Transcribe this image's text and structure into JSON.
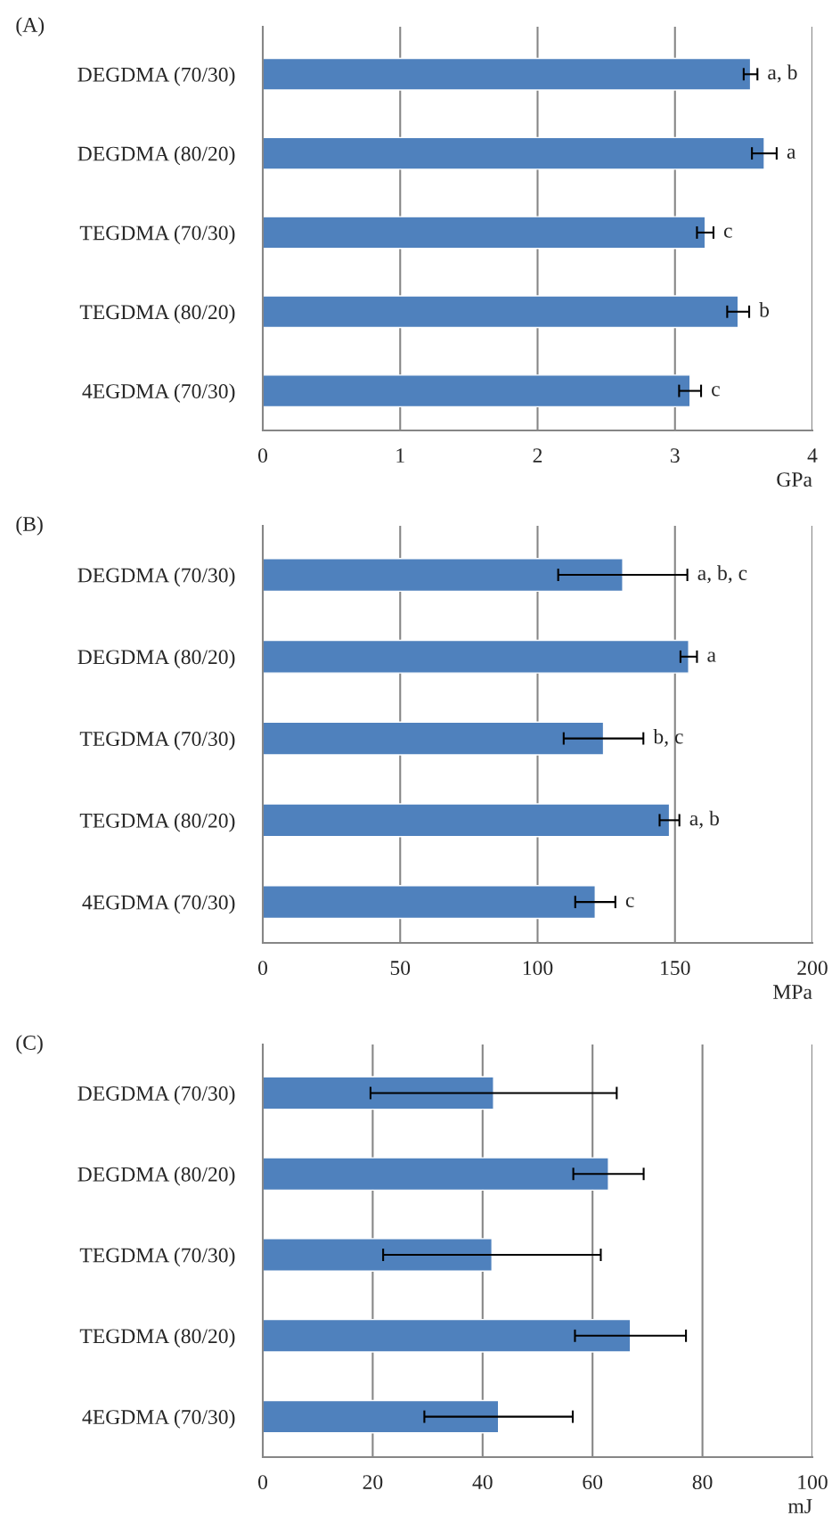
{
  "chart_data": [
    {
      "type": "bar",
      "orientation": "horizontal",
      "title": "(A)",
      "xlabel": "GPa",
      "categories": [
        "DEGDMA (70/30)",
        "DEGDMA (80/20)",
        "TEGDMA (70/30)",
        "TEGDMA (80/20)",
        "4EGDMA (70/30)"
      ],
      "values": [
        3.55,
        3.65,
        3.22,
        3.46,
        3.11
      ],
      "errors": [
        0.05,
        0.09,
        0.06,
        0.08,
        0.08
      ],
      "color": "#4f81bd",
      "xlim": [
        0,
        4
      ],
      "xticks": [
        0,
        1,
        2,
        3,
        4
      ],
      "grid": "x",
      "annotations": [
        "a, b",
        "a",
        "c",
        "b",
        "c"
      ]
    },
    {
      "type": "bar",
      "orientation": "horizontal",
      "title": "(B)",
      "xlabel": "MPa",
      "categories": [
        "DEGDMA (70/30)",
        "DEGDMA (80/20)",
        "TEGDMA (70/30)",
        "TEGDMA (80/20)",
        "4EGDMA (70/30)"
      ],
      "values": [
        131,
        155,
        124,
        148,
        121
      ],
      "errors": [
        23.5,
        3,
        14.5,
        3.6,
        7.3
      ],
      "color": "#4f81bd",
      "xlim": [
        0,
        200
      ],
      "xticks": [
        0,
        50,
        100,
        150,
        200
      ],
      "grid": "x",
      "annotations": [
        "a, b, c",
        "a",
        "b, c",
        "a, b",
        "c"
      ]
    },
    {
      "type": "bar",
      "orientation": "horizontal",
      "title": "(C)",
      "xlabel": "mJ",
      "categories": [
        "DEGDMA (70/30)",
        "DEGDMA (80/20)",
        "TEGDMA (70/30)",
        "TEGDMA (80/20)",
        "4EGDMA (70/30)"
      ],
      "values": [
        42.0,
        62.9,
        41.7,
        66.9,
        42.9
      ],
      "errors": [
        22.4,
        6.4,
        19.8,
        10.1,
        13.5
      ],
      "color": "#4f81bd",
      "xlim": [
        0,
        100
      ],
      "xticks": [
        0,
        20,
        40,
        60,
        80,
        100
      ],
      "grid": "x"
    }
  ]
}
